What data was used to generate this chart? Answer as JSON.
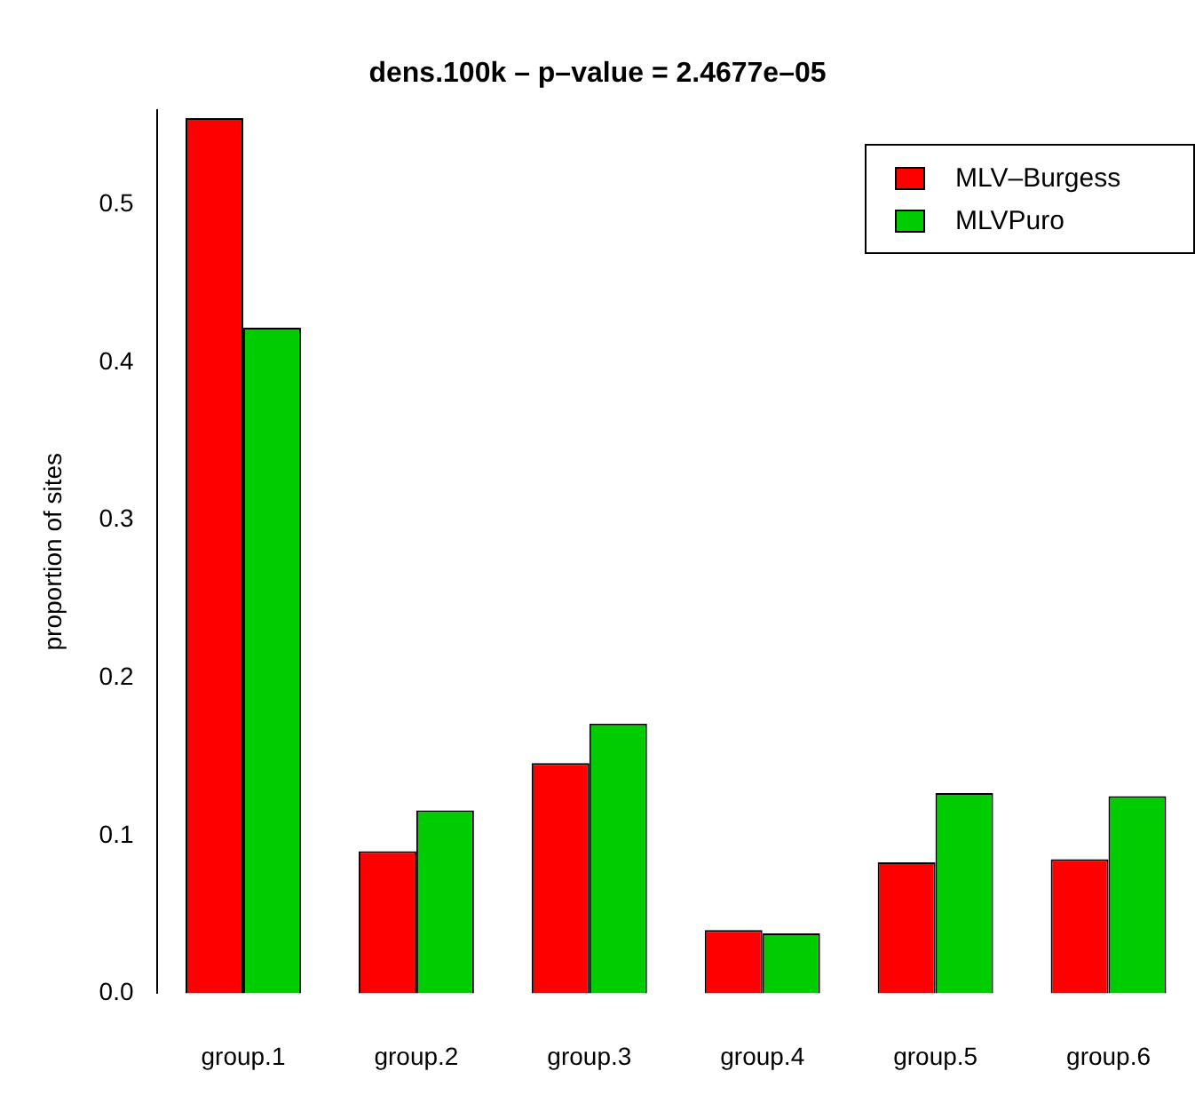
{
  "chart_data": {
    "type": "bar",
    "title": "dens.100k  – p–value = 2.4677e–05",
    "ylabel": "proportion of sites",
    "categories": [
      "group.1",
      "group.2",
      "group.3",
      "group.4",
      "group.5",
      "group.6"
    ],
    "series": [
      {
        "name": "MLV–Burgess",
        "color": "#ff0000",
        "values": [
          0.555,
          0.09,
          0.146,
          0.04,
          0.083,
          0.085
        ]
      },
      {
        "name": "MLVPuro",
        "color": "#00cd00",
        "values": [
          0.422,
          0.116,
          0.171,
          0.038,
          0.127,
          0.125
        ]
      }
    ],
    "ylim": [
      0,
      0.56
    ],
    "yticks": [
      {
        "value": 0,
        "label": "0.0"
      },
      {
        "value": 0.1,
        "label": "0.1"
      },
      {
        "value": 0.2,
        "label": "0.2"
      },
      {
        "value": 0.3,
        "label": "0.3"
      },
      {
        "value": 0.4,
        "label": "0.4"
      },
      {
        "value": 0.5,
        "label": "0.5"
      }
    ],
    "grid": false,
    "legend": "top right"
  }
}
